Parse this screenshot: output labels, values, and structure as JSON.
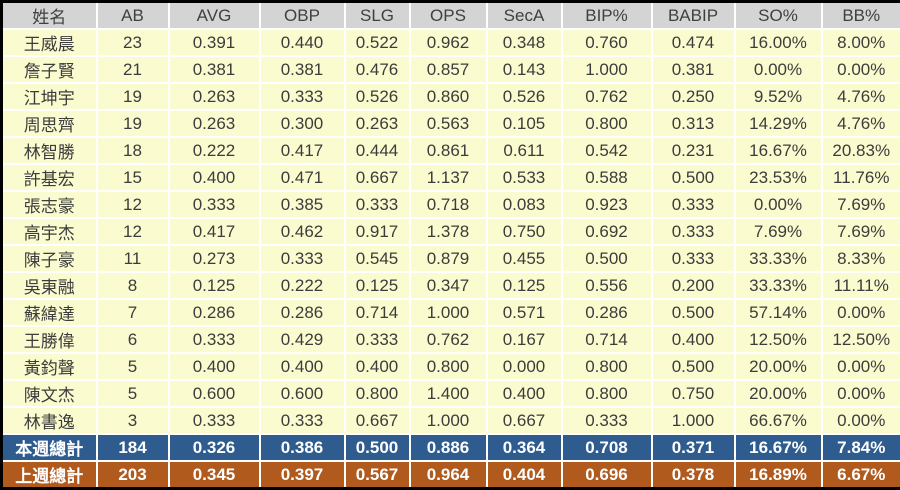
{
  "colors": {
    "outer_border": "#000000",
    "header_bg": "#d4d4d4",
    "header_text": "#404040",
    "row_bg": "#fbfbd0",
    "body_text": "#3c3c3c",
    "gridline": "#ffffff",
    "this_week_total_bg": "#2e5c8e",
    "last_week_total_bg": "#b05a1e",
    "total_text": "#ffffff"
  },
  "chart_data": {
    "type": "table",
    "columns": [
      "姓名",
      "AB",
      "AVG",
      "OBP",
      "SLG",
      "OPS",
      "SecA",
      "BIP%",
      "BABIP",
      "SO%",
      "BB%"
    ],
    "rows": [
      [
        "王威晨",
        "23",
        "0.391",
        "0.440",
        "0.522",
        "0.962",
        "0.348",
        "0.760",
        "0.474",
        "16.00%",
        "8.00%"
      ],
      [
        "詹子賢",
        "21",
        "0.381",
        "0.381",
        "0.476",
        "0.857",
        "0.143",
        "1.000",
        "0.381",
        "0.00%",
        "0.00%"
      ],
      [
        "江坤宇",
        "19",
        "0.263",
        "0.333",
        "0.526",
        "0.860",
        "0.526",
        "0.762",
        "0.250",
        "9.52%",
        "4.76%"
      ],
      [
        "周思齊",
        "19",
        "0.263",
        "0.300",
        "0.263",
        "0.563",
        "0.105",
        "0.800",
        "0.313",
        "14.29%",
        "4.76%"
      ],
      [
        "林智勝",
        "18",
        "0.222",
        "0.417",
        "0.444",
        "0.861",
        "0.611",
        "0.542",
        "0.231",
        "16.67%",
        "20.83%"
      ],
      [
        "許基宏",
        "15",
        "0.400",
        "0.471",
        "0.667",
        "1.137",
        "0.533",
        "0.588",
        "0.500",
        "23.53%",
        "11.76%"
      ],
      [
        "張志豪",
        "12",
        "0.333",
        "0.385",
        "0.333",
        "0.718",
        "0.083",
        "0.923",
        "0.333",
        "0.00%",
        "7.69%"
      ],
      [
        "高宇杰",
        "12",
        "0.417",
        "0.462",
        "0.917",
        "1.378",
        "0.750",
        "0.692",
        "0.333",
        "7.69%",
        "7.69%"
      ],
      [
        "陳子豪",
        "11",
        "0.273",
        "0.333",
        "0.545",
        "0.879",
        "0.455",
        "0.500",
        "0.333",
        "33.33%",
        "8.33%"
      ],
      [
        "吳東融",
        "8",
        "0.125",
        "0.222",
        "0.125",
        "0.347",
        "0.125",
        "0.556",
        "0.200",
        "33.33%",
        "11.11%"
      ],
      [
        "蘇緯達",
        "7",
        "0.286",
        "0.286",
        "0.714",
        "1.000",
        "0.571",
        "0.286",
        "0.500",
        "57.14%",
        "0.00%"
      ],
      [
        "王勝偉",
        "6",
        "0.333",
        "0.429",
        "0.333",
        "0.762",
        "0.167",
        "0.714",
        "0.400",
        "12.50%",
        "12.50%"
      ],
      [
        "黃鈞聲",
        "5",
        "0.400",
        "0.400",
        "0.400",
        "0.800",
        "0.000",
        "0.800",
        "0.500",
        "20.00%",
        "0.00%"
      ],
      [
        "陳文杰",
        "5",
        "0.600",
        "0.600",
        "0.800",
        "1.400",
        "0.400",
        "0.800",
        "0.750",
        "20.00%",
        "0.00%"
      ],
      [
        "林書逸",
        "3",
        "0.333",
        "0.333",
        "0.667",
        "1.000",
        "0.667",
        "0.333",
        "1.000",
        "66.67%",
        "0.00%"
      ]
    ],
    "totals": [
      {
        "label": "本週總計",
        "bg": "#2e5c8e",
        "values": [
          "184",
          "0.326",
          "0.386",
          "0.500",
          "0.886",
          "0.364",
          "0.708",
          "0.371",
          "16.67%",
          "7.84%"
        ]
      },
      {
        "label": "上週總計",
        "bg": "#b05a1e",
        "values": [
          "203",
          "0.345",
          "0.397",
          "0.567",
          "0.964",
          "0.404",
          "0.696",
          "0.378",
          "16.89%",
          "6.67%"
        ]
      }
    ]
  }
}
